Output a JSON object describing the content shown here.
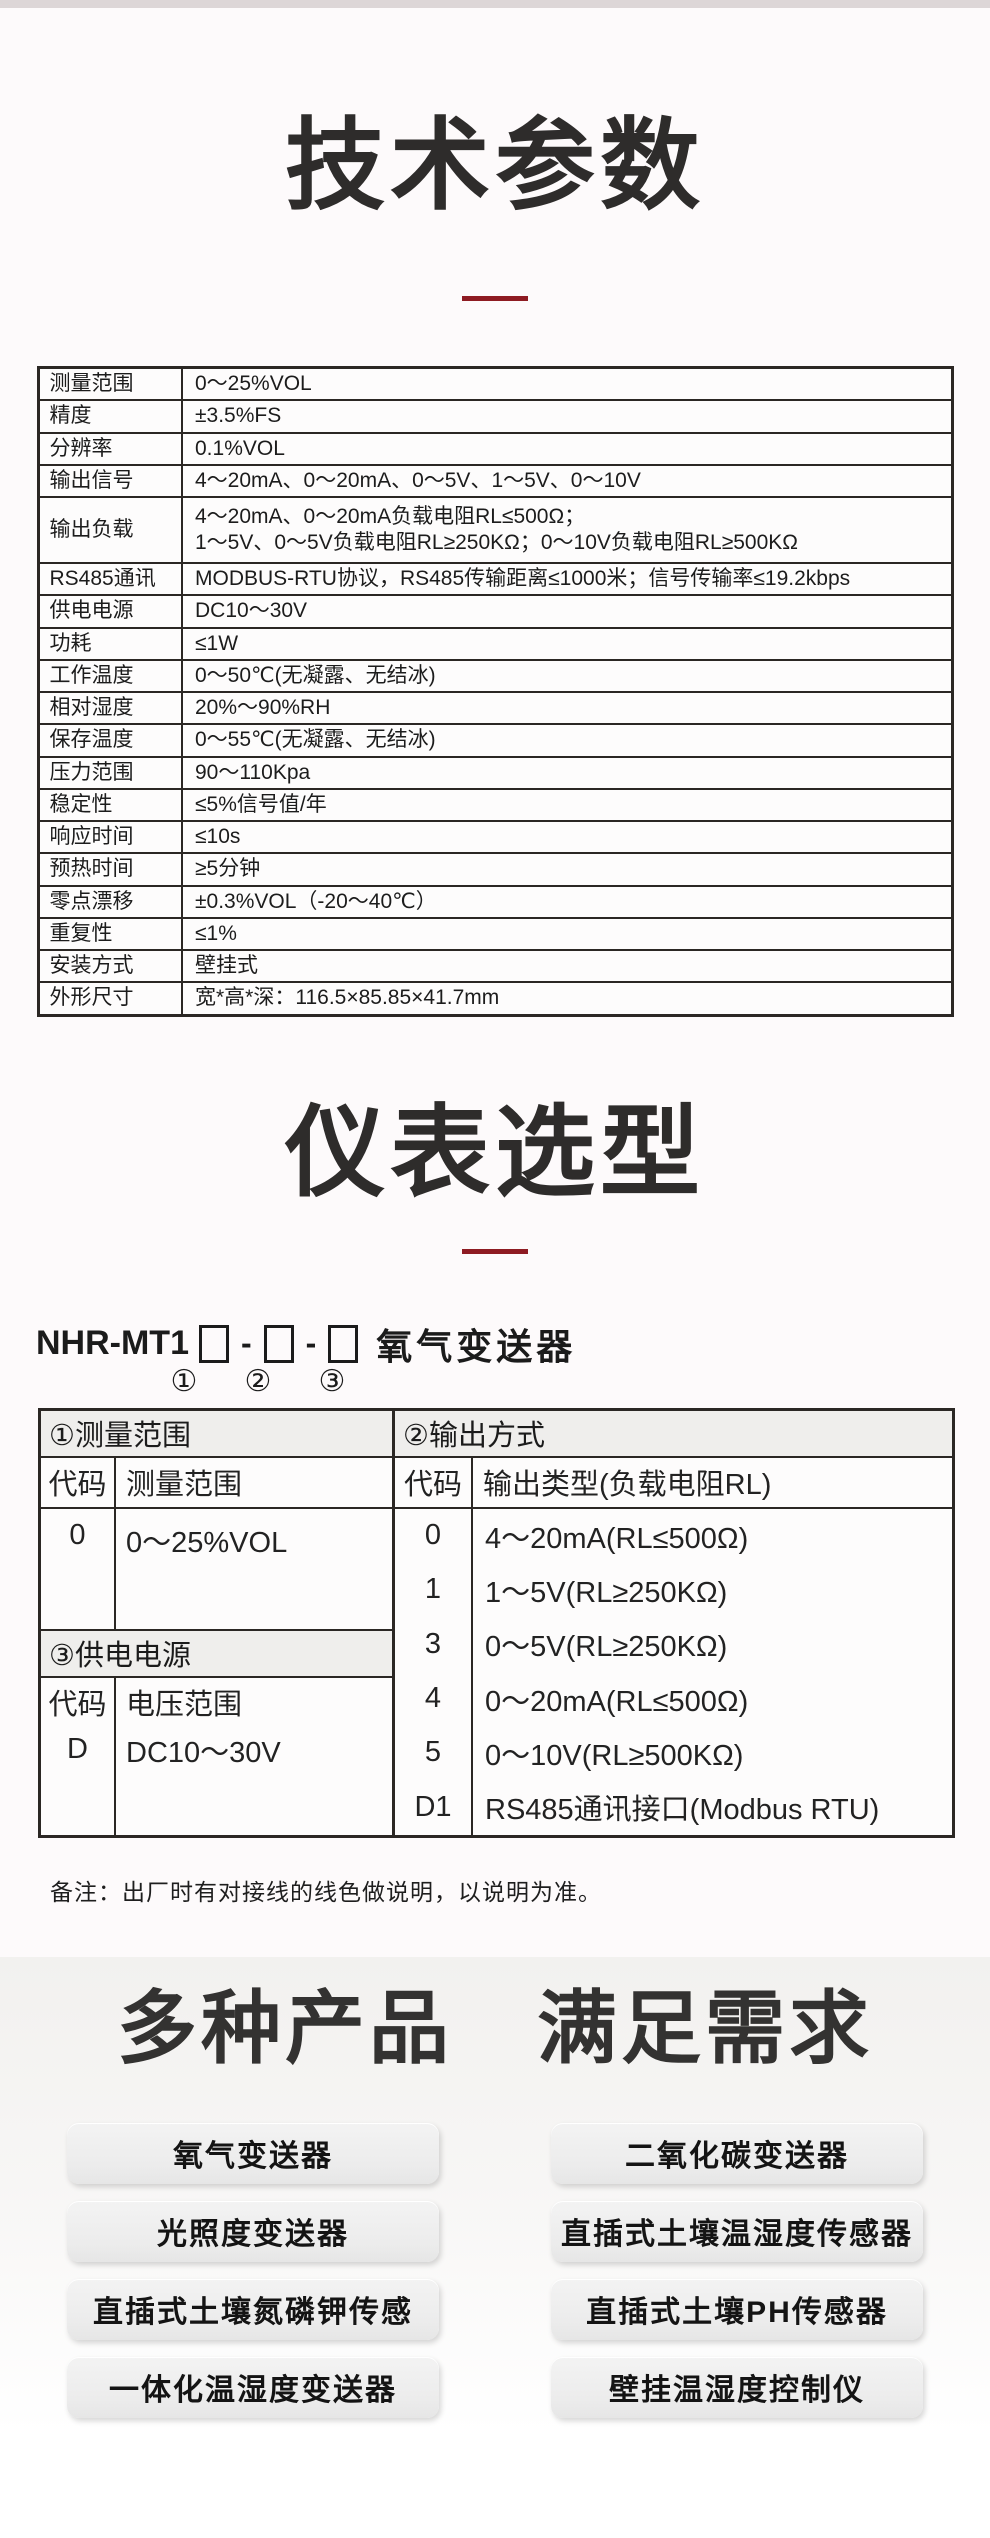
{
  "page": {
    "top_bar_color": "#ddd6d7",
    "accent_red": "#8e1b22"
  },
  "tech": {
    "title": "技术参数",
    "spec_rows": [
      {
        "label": "测量范围",
        "value": "0～25%VOL"
      },
      {
        "label": "精度",
        "value": "±3.5%FS"
      },
      {
        "label": "分辨率",
        "value": "0.1%VOL"
      },
      {
        "label": "输出信号",
        "value": "4～20mA、0～20mA、0～5V、1～5V、0～10V"
      },
      {
        "label": "输出负载",
        "value": "4～20mA、0～20mA负载电阻RL≤500Ω；\n1～5V、0～5V负载电阻RL≥250KΩ；0～10V负载电阻RL≥500KΩ"
      },
      {
        "label": "RS485通讯",
        "value": "MODBUS-RTU协议，RS485传输距离≤1000米；信号传输率≤19.2kbps"
      },
      {
        "label": "供电电源",
        "value": "DC10～30V"
      },
      {
        "label": "功耗",
        "value": "≤1W"
      },
      {
        "label": "工作温度",
        "value": "0～50℃(无凝露、无结冰)"
      },
      {
        "label": "相对湿度",
        "value": "20%～90%RH"
      },
      {
        "label": "保存温度",
        "value": "0～55℃(无凝露、无结冰)"
      },
      {
        "label": "压力范围",
        "value": "90～110Kpa"
      },
      {
        "label": "稳定性",
        "value": "≤5%信号值/年"
      },
      {
        "label": "响应时间",
        "value": "≤10s"
      },
      {
        "label": "预热时间",
        "value": "≥5分钟"
      },
      {
        "label": "零点漂移",
        "value": "±0.3%VOL（-20～40℃）"
      },
      {
        "label": "重复性",
        "value": "≤1%"
      },
      {
        "label": "安装方式",
        "value": "壁挂式"
      },
      {
        "label": "外形尺寸",
        "value": "宽*高*深：116.5×85.85×41.7mm"
      }
    ]
  },
  "selection": {
    "title": "仪表选型",
    "model_prefix": "NHR-MT1",
    "model_separator": "-",
    "model_product": "氧气变送器",
    "position_markers": [
      "①",
      "②",
      "③"
    ],
    "table1": {
      "header": "①测量范围",
      "col_code": "代码",
      "col_value": "测量范围",
      "rows": [
        {
          "code": "0",
          "value": "0～25%VOL"
        }
      ]
    },
    "table3": {
      "header": "③供电电源",
      "col_code": "代码",
      "col_value": "电压范围",
      "rows": [
        {
          "code": "D",
          "value": "DC10～30V"
        }
      ]
    },
    "table2": {
      "header": "②输出方式",
      "col_code": "代码",
      "col_value": "输出类型(负载电阻RL)",
      "rows": [
        {
          "code": "0",
          "value": "4～20mA(RL≤500Ω)"
        },
        {
          "code": "1",
          "value": "1～5V(RL≥250KΩ)"
        },
        {
          "code": "3",
          "value": "0～5V(RL≥250KΩ)"
        },
        {
          "code": "4",
          "value": "0～20mA(RL≤500Ω)"
        },
        {
          "code": "5",
          "value": "0～10V(RL≥500KΩ)"
        },
        {
          "code": "D1",
          "value": "RS485通讯接口(Modbus RTU)"
        }
      ]
    },
    "note": "备注：出厂时有对接线的线色做说明，以说明为准。"
  },
  "products": {
    "title_left": "多种产品",
    "title_right": "满足需求",
    "buttons": [
      {
        "label": "氧气变送器"
      },
      {
        "label": "二氧化碳变送器"
      },
      {
        "label": "光照度变送器"
      },
      {
        "label": "直插式土壤温湿度传感器"
      },
      {
        "label": "直插式土壤氮磷钾传感"
      },
      {
        "label": "直插式土壤PH传感器"
      },
      {
        "label": "一体化温湿度变送器"
      },
      {
        "label": "壁挂温湿度控制仪"
      }
    ]
  }
}
